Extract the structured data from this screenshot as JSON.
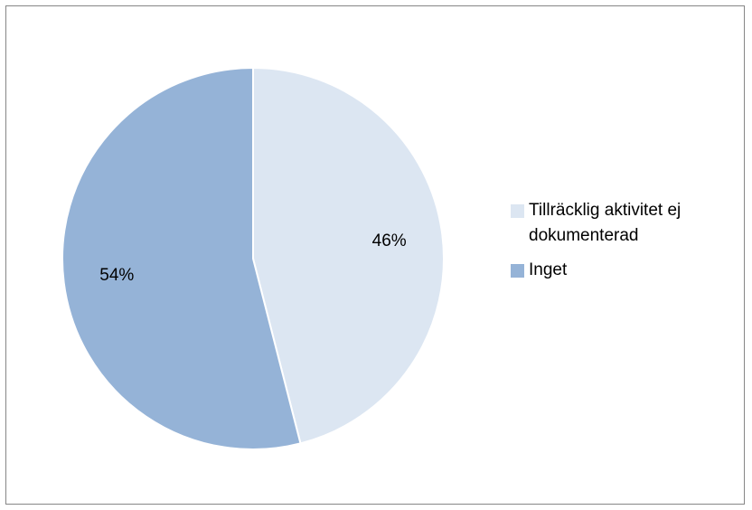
{
  "chart_data": {
    "type": "pie",
    "categories": [
      "Tillräcklig aktivitet ej dokumenterad",
      "Inget"
    ],
    "values": [
      46,
      54
    ],
    "data_labels": [
      "46%",
      "54%"
    ],
    "colors": [
      "#dce6f2",
      "#95b3d7"
    ],
    "legend_position": "right",
    "title": ""
  },
  "legend": {
    "items": [
      {
        "label": "Tillräcklig aktivitet ej dokumenterad",
        "color": "#dce6f2"
      },
      {
        "label": "Inget",
        "color": "#95b3d7"
      }
    ]
  }
}
